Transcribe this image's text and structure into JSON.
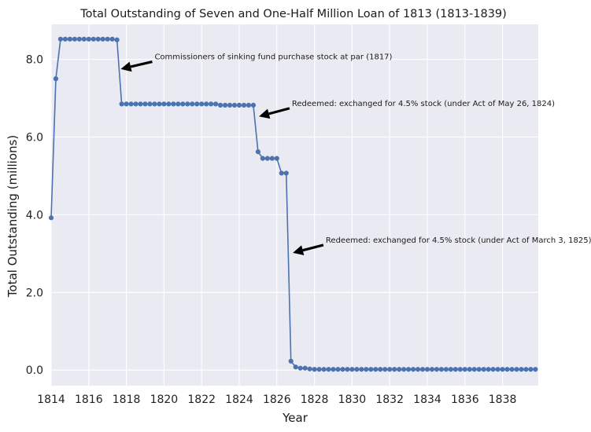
{
  "chart_data": {
    "type": "line",
    "title": "Total Outstanding of Seven and One-Half Million Loan of 1813 (1813-1839)",
    "xlabel": "Year",
    "ylabel": "Total Outstanding (millions)",
    "xlim": [
      1814.0,
      1839.9
    ],
    "ylim": [
      -0.4,
      8.9
    ],
    "grid": true,
    "x_ticks": [
      1814,
      1816,
      1818,
      1820,
      1822,
      1824,
      1826,
      1828,
      1830,
      1832,
      1834,
      1836,
      1838
    ],
    "x_tick_labels": [
      "1814",
      "1816",
      "1818",
      "1820",
      "1822",
      "1824",
      "1826",
      "1828",
      "1830",
      "1832",
      "1834",
      "1836",
      "1838"
    ],
    "y_ticks": [
      0,
      2,
      4,
      6,
      8
    ],
    "y_tick_labels": [
      "0.0",
      "2.0",
      "4.0",
      "6.0",
      "8.0"
    ],
    "series": [
      {
        "color": "#4c72b0",
        "x": [
          1814.0,
          1814.25,
          1814.5,
          1814.75,
          1815.0,
          1815.25,
          1815.5,
          1815.75,
          1816.0,
          1816.25,
          1816.5,
          1816.75,
          1817.0,
          1817.25,
          1817.5,
          1817.75,
          1818.0,
          1818.25,
          1818.5,
          1818.75,
          1819.0,
          1819.25,
          1819.5,
          1819.75,
          1820.0,
          1820.25,
          1820.5,
          1820.75,
          1821.0,
          1821.25,
          1821.5,
          1821.75,
          1822.0,
          1822.25,
          1822.5,
          1822.75,
          1823.0,
          1823.25,
          1823.5,
          1823.75,
          1824.0,
          1824.25,
          1824.5,
          1824.75,
          1825.0,
          1825.25,
          1825.5,
          1825.75,
          1826.0,
          1826.25,
          1826.5,
          1826.75,
          1827.0,
          1827.25,
          1827.5,
          1827.75,
          1828.0,
          1828.25,
          1828.5,
          1828.75,
          1829.0,
          1829.25,
          1829.5,
          1829.75,
          1830.0,
          1830.25,
          1830.5,
          1830.75,
          1831.0,
          1831.25,
          1831.5,
          1831.75,
          1832.0,
          1832.25,
          1832.5,
          1832.75,
          1833.0,
          1833.25,
          1833.5,
          1833.75,
          1834.0,
          1834.25,
          1834.5,
          1834.75,
          1835.0,
          1835.25,
          1835.5,
          1835.75,
          1836.0,
          1836.25,
          1836.5,
          1836.75,
          1837.0,
          1837.25,
          1837.5,
          1837.75,
          1838.0,
          1838.25,
          1838.5,
          1838.75,
          1839.0,
          1839.25,
          1839.5,
          1839.75
        ],
        "y": [
          3.92,
          7.5,
          8.52,
          8.52,
          8.52,
          8.52,
          8.52,
          8.52,
          8.52,
          8.52,
          8.52,
          8.52,
          8.52,
          8.52,
          8.5,
          6.85,
          6.85,
          6.85,
          6.85,
          6.85,
          6.85,
          6.85,
          6.85,
          6.85,
          6.85,
          6.85,
          6.85,
          6.85,
          6.85,
          6.85,
          6.85,
          6.85,
          6.85,
          6.85,
          6.85,
          6.85,
          6.82,
          6.82,
          6.82,
          6.82,
          6.82,
          6.82,
          6.82,
          6.82,
          5.62,
          5.45,
          5.45,
          5.45,
          5.45,
          5.07,
          5.07,
          0.23,
          0.08,
          0.05,
          0.05,
          0.03,
          0.02,
          0.02,
          0.02,
          0.02,
          0.02,
          0.02,
          0.02,
          0.02,
          0.02,
          0.02,
          0.02,
          0.02,
          0.02,
          0.02,
          0.02,
          0.02,
          0.02,
          0.02,
          0.02,
          0.02,
          0.02,
          0.02,
          0.02,
          0.02,
          0.02,
          0.02,
          0.02,
          0.02,
          0.02,
          0.02,
          0.02,
          0.02,
          0.02,
          0.02,
          0.02,
          0.02,
          0.02,
          0.02,
          0.02,
          0.02,
          0.02,
          0.02,
          0.02,
          0.02,
          0.02,
          0.02,
          0.02,
          0.02
        ]
      }
    ],
    "annotations": [
      {
        "text": "Commissioners of sinking fund purchase stock at par (1817)",
        "x": 1817.7,
        "y": 7.75,
        "text_x": 1819.5,
        "text_y": 8.0
      },
      {
        "text": "Redeemed: exchanged for 4.5% stock (under Act of May 26, 1824)",
        "x": 1825.05,
        "y": 6.53,
        "text_x": 1826.8,
        "text_y": 6.8
      },
      {
        "text": "Redeemed: exchanged for 4.5% stock (under Act of March 3, 1825)",
        "x": 1826.85,
        "y": 3.02,
        "text_x": 1828.6,
        "text_y": 3.28
      }
    ]
  },
  "colors": {
    "background": "#ffffff",
    "plot_background": "#eaeaf2",
    "grid": "#ffffff",
    "line": "#4c72b0",
    "arrow": "#000000"
  }
}
